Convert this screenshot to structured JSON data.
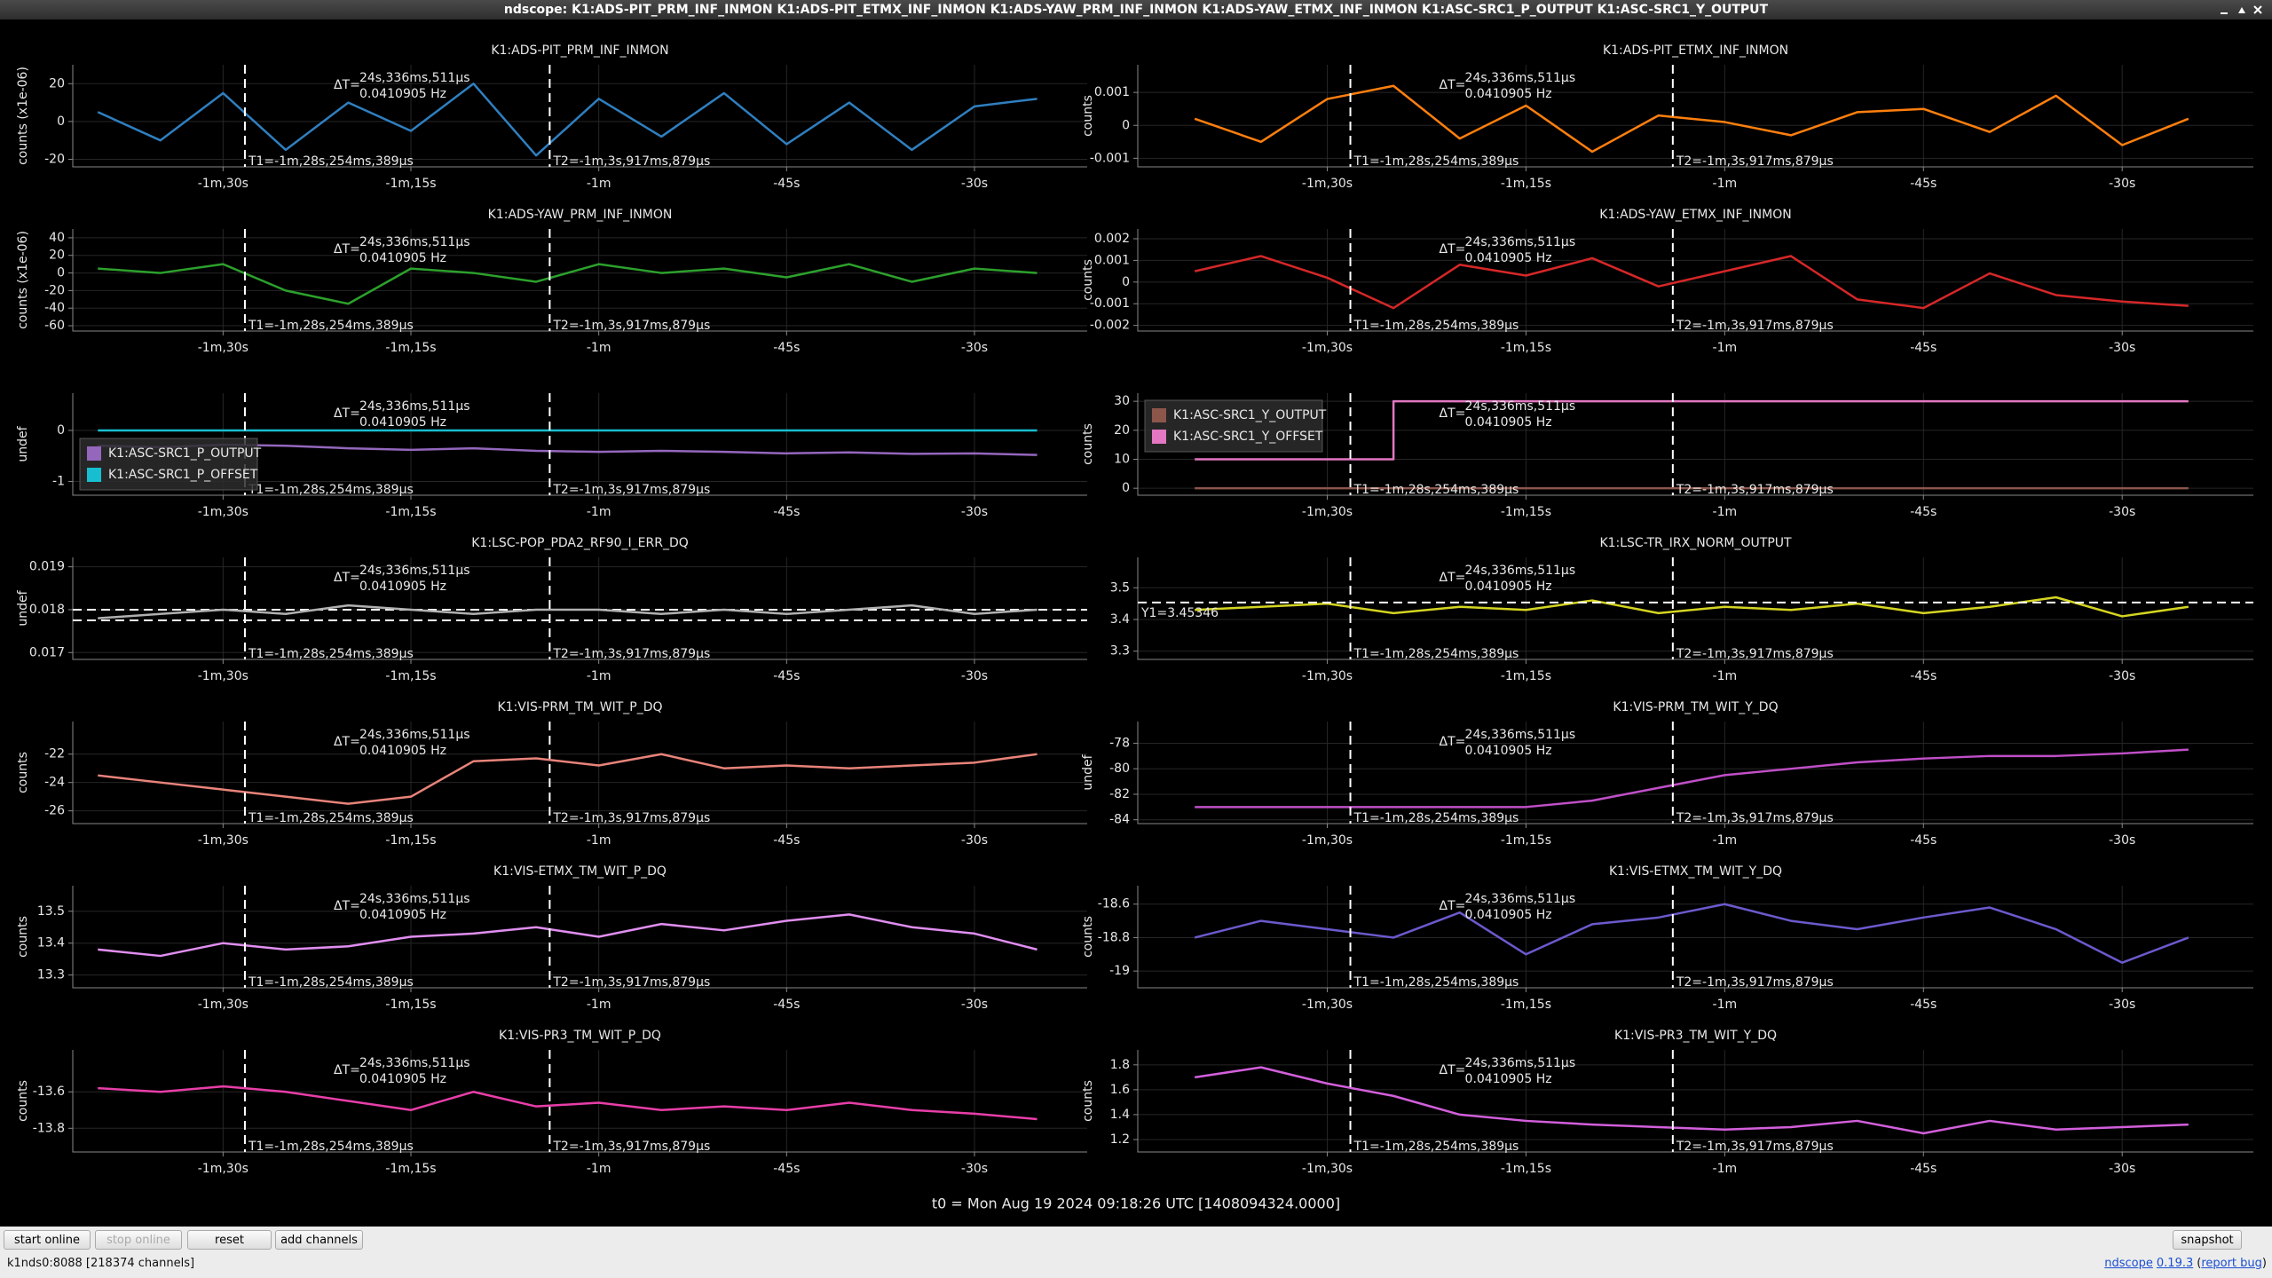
{
  "window": {
    "title": "ndscope: K1:ADS-PIT_PRM_INF_INMON K1:ADS-PIT_ETMX_INF_INMON K1:ADS-YAW_PRM_INF_INMON K1:ADS-YAW_ETMX_INF_INMON K1:ASC-SRC1_P_OUTPUT K1:ASC-SRC1_Y_OUTPUT"
  },
  "grid": true,
  "x_axis": {
    "xticks": [
      {
        "value": -90,
        "label": "-1m,30s"
      },
      {
        "value": -75,
        "label": "-1m,15s"
      },
      {
        "value": -60,
        "label": "-1m"
      },
      {
        "value": -45,
        "label": "-45s"
      },
      {
        "value": -30,
        "label": "-30s"
      }
    ]
  },
  "sample_times": [
    -100,
    -95,
    -90,
    -85,
    -80,
    -75,
    -70,
    -65,
    -60,
    -55,
    -50,
    -45,
    -40,
    -35,
    -30,
    -25
  ],
  "cursors": {
    "t1": {
      "value": -88.254389,
      "label": "T1=-1m,28s,254ms,389µs"
    },
    "t2": {
      "value": -63.917879,
      "label": "T2=-1m,3s,917ms,879µs"
    },
    "delta_prefix": "ΔT=",
    "delta": "24s,336ms,511µs",
    "frequency": "0.0410905 Hz"
  },
  "chart_data": [
    {
      "type": "line",
      "title": "K1:ADS-PIT_PRM_INF_INMON",
      "ylabel": "counts (x1e-06)",
      "xlim": [
        -102,
        -21
      ],
      "ylim": [
        -24,
        30
      ],
      "yticks": [
        -20,
        0,
        20
      ],
      "series": [
        {
          "color": "#2f7fc0",
          "values": [
            5,
            -10,
            15,
            -15,
            10,
            -5,
            20,
            -18,
            12,
            -8,
            15,
            -12,
            10,
            -15,
            8,
            12
          ]
        }
      ]
    },
    {
      "type": "line",
      "title": "K1:ADS-PIT_ETMX_INF_INMON",
      "ylabel": "counts",
      "xlim": [
        -104.3,
        -20.1
      ],
      "ylim": [
        -0.00126,
        0.00184
      ],
      "yticks": [
        -0.001,
        0,
        0.001
      ],
      "series": [
        {
          "color": "#ff7f0e",
          "values": [
            0.0002,
            -0.0005,
            0.0008,
            0.0012,
            -0.0004,
            0.0006,
            -0.0008,
            0.0003,
            0.0001,
            -0.0003,
            0.0004,
            0.0005,
            -0.0002,
            0.0009,
            -0.0006,
            0.0002
          ]
        }
      ]
    },
    {
      "type": "line",
      "title": "K1:ADS-YAW_PRM_INF_INMON",
      "ylabel": "counts (x1e-06)",
      "xlim": [
        -102,
        -21
      ],
      "ylim": [
        -66,
        50
      ],
      "yticks": [
        -60,
        -40,
        -20,
        0,
        20,
        40
      ],
      "series": [
        {
          "color": "#2ca02c",
          "values": [
            5,
            0,
            10,
            -20,
            -35,
            5,
            0,
            -10,
            10,
            0,
            5,
            -5,
            10,
            -10,
            5,
            0
          ]
        }
      ]
    },
    {
      "type": "line",
      "title": "K1:ADS-YAW_ETMX_INF_INMON",
      "ylabel": "counts",
      "xlim": [
        -104.3,
        -20.1
      ],
      "ylim": [
        -0.00226,
        0.00245
      ],
      "yticks": [
        -0.002,
        -0.001,
        0,
        0.001,
        0.002
      ],
      "series": [
        {
          "color": "#d62728",
          "values": [
            0.0005,
            0.0012,
            0.0002,
            -0.0012,
            0.0008,
            0.0003,
            0.0011,
            -0.0002,
            0.0005,
            0.0012,
            -0.0008,
            -0.0012,
            0.0004,
            -0.0006,
            -0.0009,
            -0.0011
          ]
        }
      ]
    },
    {
      "type": "line",
      "ylabel": "undef",
      "xlim": [
        -102,
        -21
      ],
      "ylim": [
        -1.27,
        0.73
      ],
      "yticks": [
        -1,
        0
      ],
      "legend": "lower left",
      "series": [
        {
          "name": "K1:ASC-SRC1_P_OUTPUT",
          "color": "#9467bd",
          "values": [
            -0.3,
            -0.33,
            -0.28,
            -0.3,
            -0.35,
            -0.38,
            -0.35,
            -0.4,
            -0.42,
            -0.4,
            -0.42,
            -0.45,
            -0.43,
            -0.46,
            -0.45,
            -0.48
          ]
        },
        {
          "name": "K1:ASC-SRC1_P_OFFSET",
          "color": "#17becf",
          "values": [
            0,
            0,
            0,
            0,
            0,
            0,
            0,
            0,
            0,
            0,
            0,
            0,
            0,
            0,
            0,
            0
          ]
        }
      ]
    },
    {
      "type": "line",
      "ylabel": "counts",
      "xlim": [
        -104.3,
        -20.1
      ],
      "ylim": [
        -2.4,
        32.8
      ],
      "yticks": [
        0,
        10,
        20,
        30
      ],
      "legend": "upper left",
      "steps": true,
      "series": [
        {
          "name": "K1:ASC-SRC1_Y_OUTPUT",
          "color": "#8c564b",
          "values": [
            0,
            0,
            0,
            0,
            0,
            0,
            0,
            0,
            0,
            0,
            0,
            0,
            0,
            0,
            0,
            0
          ]
        },
        {
          "name": "K1:ASC-SRC1_Y_OFFSET",
          "color": "#e377c2",
          "values": [
            10,
            10,
            10,
            30,
            30,
            30,
            30,
            30,
            30,
            30,
            30,
            30,
            30,
            30,
            30,
            30
          ]
        }
      ]
    },
    {
      "type": "line",
      "title": "K1:LSC-POP_PDA2_RF90_I_ERR_DQ",
      "ylabel": "undef",
      "xlim": [
        -102,
        -21
      ],
      "ylim": [
        0.01684,
        0.01922
      ],
      "yticks": [
        0.017,
        0.018,
        0.019
      ],
      "hlines": [
        0.018,
        0.01775
      ],
      "series": [
        {
          "color": "#b0b0b0",
          "values": [
            0.0178,
            0.0179,
            0.018,
            0.0179,
            0.0181,
            0.018,
            0.0179,
            0.018,
            0.018,
            0.0179,
            0.018,
            0.0179,
            0.018,
            0.0181,
            0.0179,
            0.018
          ]
        }
      ]
    },
    {
      "type": "line",
      "title": "K1:LSC-TR_IRX_NORM_OUTPUT",
      "xlim": [
        -104.3,
        -20.1
      ],
      "ylim": [
        3.274,
        3.596
      ],
      "yticks": [
        3.3,
        3.4,
        3.5
      ],
      "y_cursor": {
        "value": 3.45346,
        "label": "Y1=3.45346"
      },
      "series": [
        {
          "color": "#d4d422",
          "values": [
            3.43,
            3.44,
            3.45,
            3.42,
            3.44,
            3.43,
            3.46,
            3.42,
            3.44,
            3.43,
            3.45,
            3.42,
            3.44,
            3.47,
            3.41,
            3.44
          ]
        }
      ]
    },
    {
      "type": "line",
      "title": "K1:VIS-PRM_TM_WIT_P_DQ",
      "ylabel": "counts",
      "xlim": [
        -102,
        -21
      ],
      "ylim": [
        -26.9,
        -19.7
      ],
      "yticks": [
        -26,
        -24,
        -22
      ],
      "series": [
        {
          "color": "#e8837a",
          "values": [
            -23.5,
            -24,
            -24.5,
            -25,
            -25.5,
            -25,
            -22.5,
            -22.3,
            -22.8,
            -22,
            -23,
            -22.8,
            -23,
            -22.8,
            -22.6,
            -22
          ]
        }
      ]
    },
    {
      "type": "line",
      "title": "K1:VIS-PRM_TM_WIT_Y_DQ",
      "ylabel": "undef",
      "xlim": [
        -104.3,
        -20.1
      ],
      "ylim": [
        -84.3,
        -76.3
      ],
      "yticks": [
        -84,
        -82,
        -80,
        -78
      ],
      "series": [
        {
          "color": "#c04fc8",
          "values": [
            -83,
            -83,
            -83,
            -83,
            -83,
            -83,
            -82.5,
            -81.5,
            -80.5,
            -80,
            -79.5,
            -79.2,
            -79,
            -79,
            -78.8,
            -78.5
          ]
        }
      ]
    },
    {
      "type": "line",
      "title": "K1:VIS-ETMX_TM_WIT_P_DQ",
      "ylabel": "counts",
      "xlim": [
        -102,
        -21
      ],
      "ylim": [
        13.26,
        13.58
      ],
      "yticks": [
        13.3,
        13.4,
        13.5
      ],
      "series": [
        {
          "color": "#e08ef0",
          "values": [
            13.38,
            13.36,
            13.4,
            13.38,
            13.39,
            13.42,
            13.43,
            13.45,
            13.42,
            13.46,
            13.44,
            13.47,
            13.49,
            13.45,
            13.43,
            13.38
          ]
        }
      ]
    },
    {
      "type": "line",
      "title": "K1:VIS-ETMX_TM_WIT_Y_DQ",
      "ylabel": "counts",
      "xlim": [
        -104.3,
        -20.1
      ],
      "ylim": [
        -19.1,
        -18.49
      ],
      "yticks": [
        -19,
        -18.8,
        -18.6
      ],
      "series": [
        {
          "color": "#6a5acd",
          "values": [
            -18.8,
            -18.7,
            -18.75,
            -18.8,
            -18.65,
            -18.9,
            -18.72,
            -18.68,
            -18.6,
            -18.7,
            -18.75,
            -18.68,
            -18.62,
            -18.75,
            -18.95,
            -18.8
          ]
        }
      ]
    },
    {
      "type": "line",
      "title": "K1:VIS-PR3_TM_WIT_P_DQ",
      "ylabel": "counts",
      "xlim": [
        -102,
        -21
      ],
      "ylim": [
        -13.93,
        -13.37
      ],
      "yticks": [
        -13.8,
        -13.6
      ],
      "series": [
        {
          "color": "#e83ea8",
          "values": [
            -13.58,
            -13.6,
            -13.57,
            -13.6,
            -13.65,
            -13.7,
            -13.6,
            -13.68,
            -13.66,
            -13.7,
            -13.68,
            -13.7,
            -13.66,
            -13.7,
            -13.72,
            -13.75
          ]
        }
      ]
    },
    {
      "type": "line",
      "title": "K1:VIS-PR3_TM_WIT_Y_DQ",
      "ylabel": "counts",
      "xlim": [
        -104.3,
        -20.1
      ],
      "ylim": [
        1.1,
        1.92
      ],
      "yticks": [
        1.2,
        1.4,
        1.6,
        1.8
      ],
      "series": [
        {
          "color": "#d35fdc",
          "values": [
            1.7,
            1.78,
            1.65,
            1.55,
            1.4,
            1.35,
            1.32,
            1.3,
            1.28,
            1.3,
            1.35,
            1.25,
            1.35,
            1.28,
            1.3,
            1.32
          ]
        }
      ]
    }
  ],
  "t0_label": "t0 = Mon Aug 19 2024 09:18:26 UTC [1408094324.0000]",
  "footer": {
    "buttons": [
      {
        "label": "start online",
        "enabled": true
      },
      {
        "label": "stop online",
        "enabled": false
      },
      {
        "label": "reset",
        "enabled": true
      },
      {
        "label": "add channels",
        "enabled": true
      }
    ],
    "snapshot": "snapshot",
    "status": "k1nds0:8088 [218374 channels]",
    "version_info": [
      "ndscope",
      "0.19.3",
      "(",
      "report bug",
      ")"
    ]
  }
}
